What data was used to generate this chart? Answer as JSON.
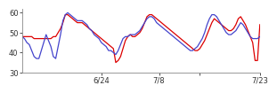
{
  "red_y": [
    48,
    48,
    48,
    48,
    48,
    47,
    47,
    47,
    47,
    47,
    47,
    47,
    47,
    48,
    48,
    50,
    52,
    55,
    59,
    59,
    58,
    57,
    56,
    55,
    55,
    55,
    54,
    53,
    52,
    51,
    50,
    49,
    48,
    47,
    46,
    45,
    44,
    43,
    42,
    35,
    36,
    38,
    42,
    46,
    48,
    49,
    48,
    48,
    49,
    50,
    52,
    55,
    58,
    59,
    59,
    58,
    57,
    56,
    55,
    54,
    53,
    52,
    51,
    50,
    49,
    48,
    47,
    46,
    45,
    44,
    43,
    42,
    41,
    41,
    42,
    44,
    46,
    49,
    52,
    55,
    57,
    56,
    55,
    54,
    53,
    52,
    51,
    51,
    52,
    54,
    57,
    58,
    56,
    54,
    51,
    48,
    45,
    36,
    36,
    54
  ],
  "blue_y": [
    48,
    47,
    45,
    44,
    41,
    38,
    37,
    37,
    41,
    45,
    49,
    46,
    43,
    38,
    37,
    43,
    49,
    56,
    59,
    60,
    59,
    58,
    57,
    56,
    56,
    56,
    55,
    54,
    52,
    51,
    49,
    48,
    47,
    45,
    44,
    43,
    41,
    41,
    40,
    39,
    41,
    44,
    47,
    48,
    48,
    49,
    49,
    49,
    50,
    51,
    53,
    55,
    57,
    58,
    58,
    57,
    55,
    54,
    53,
    52,
    51,
    50,
    49,
    48,
    47,
    46,
    45,
    44,
    43,
    42,
    41,
    41,
    42,
    43,
    45,
    47,
    50,
    54,
    57,
    59,
    59,
    58,
    56,
    54,
    52,
    50,
    49,
    49,
    50,
    51,
    53,
    55,
    54,
    52,
    50,
    48,
    47,
    47,
    47,
    48
  ],
  "xlim": [
    0,
    99
  ],
  "ylim": [
    30,
    62
  ],
  "yticks": [
    30,
    40,
    50,
    60
  ],
  "xtick_positions": [
    33,
    57,
    74,
    99
  ],
  "xtick_labels": [
    "6/24",
    "7/8",
    "",
    "7/23"
  ],
  "red_color": "#dd0000",
  "blue_color": "#4444cc",
  "bg_color": "#ffffff",
  "linewidth": 0.9
}
